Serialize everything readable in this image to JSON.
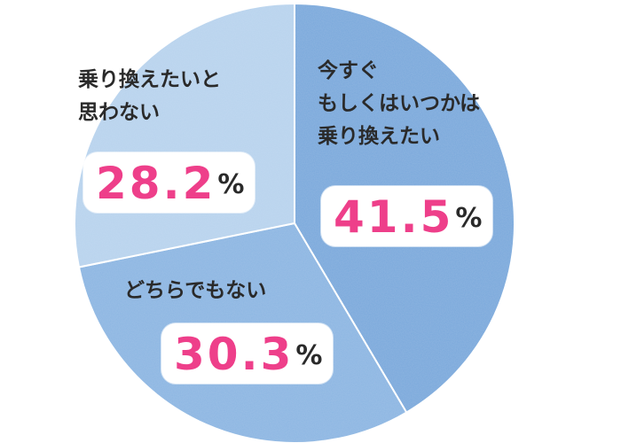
{
  "chart_data": {
    "type": "pie",
    "title": "",
    "unit": "%",
    "start_angle_deg": 0,
    "direction": "clockwise",
    "slices": [
      {
        "label": "今すぐ\nもしくはいつかは\n乗り換えたい",
        "value": 41.5,
        "value_text": "41.5",
        "color": "#79a9dc"
      },
      {
        "label": "どちらでもない",
        "value": 30.3,
        "value_text": "30.3",
        "color": "#8bb6e2"
      },
      {
        "label": "乗り換えたいと\n思わない",
        "value": 28.2,
        "value_text": "28.2",
        "color": "#b8d3ee"
      }
    ]
  },
  "colors": {
    "percent_text": "#ee3f8a",
    "label_text": "#2a2a2a",
    "divider": "#ffffff"
  }
}
